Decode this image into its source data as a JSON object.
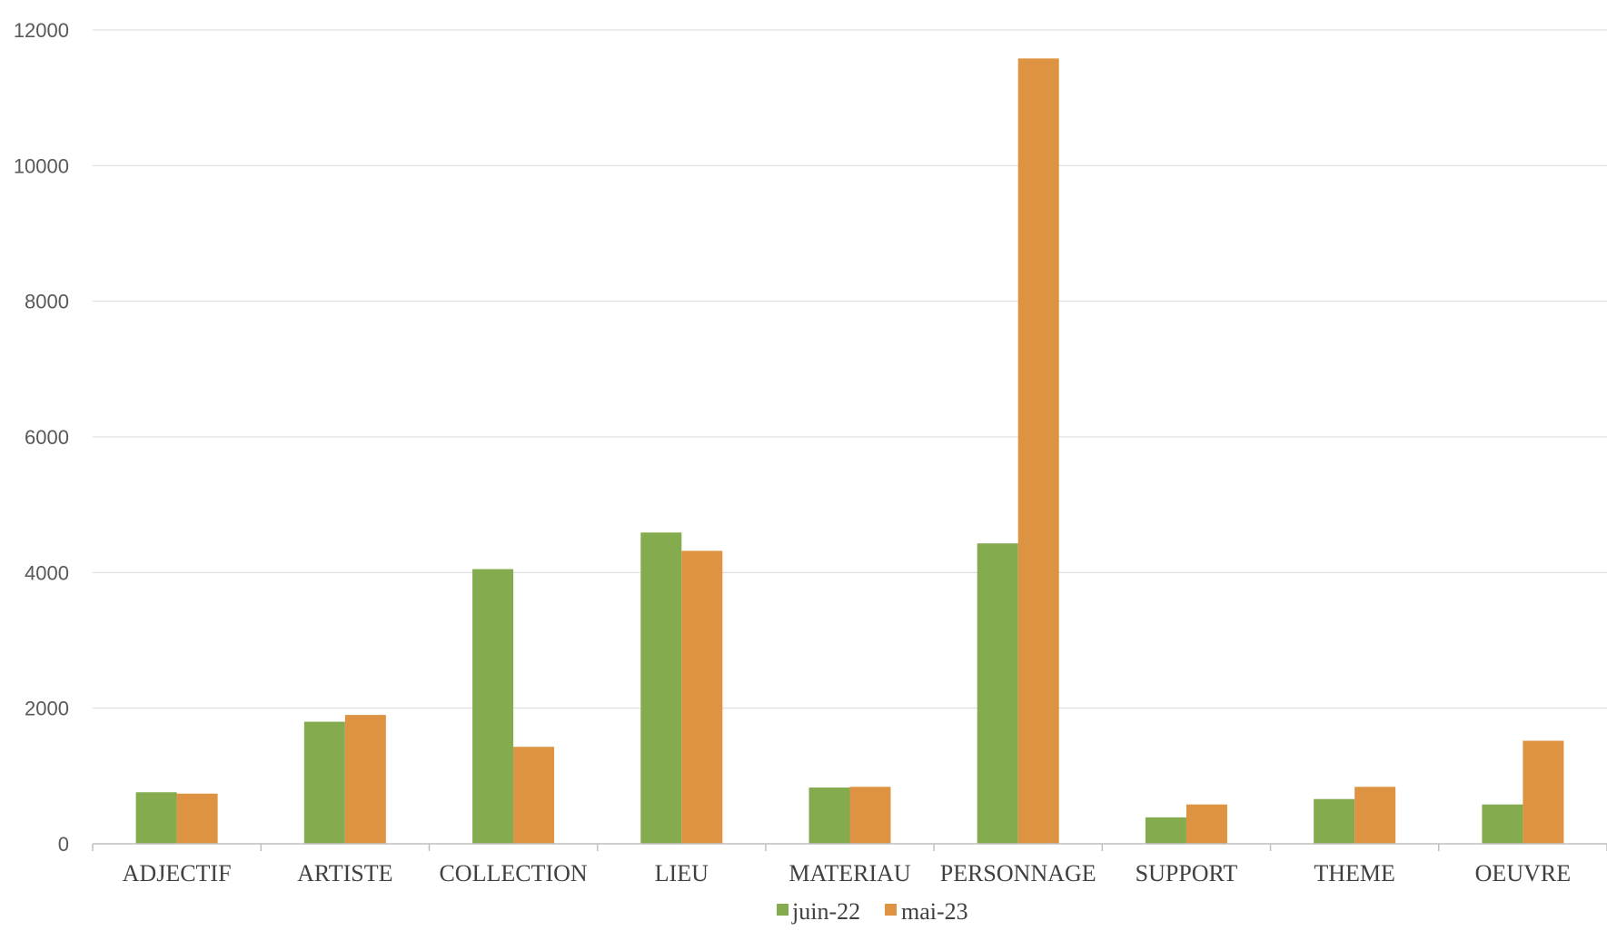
{
  "chart_data": {
    "type": "bar",
    "title": "",
    "xlabel": "",
    "ylabel": "",
    "ylim": [
      0,
      12000
    ],
    "yticks": [
      0,
      2000,
      4000,
      6000,
      8000,
      10000,
      12000
    ],
    "ytick_labels": [
      "0",
      "2000",
      "4000",
      "6000",
      "8000",
      "10000",
      "12000"
    ],
    "grid": true,
    "legend_position": "bottom",
    "categories": [
      "ADJECTIF",
      "ARTISTE",
      "COLLECTION",
      "LIEU",
      "MATERIAU",
      "PERSONNAGE",
      "SUPPORT",
      "THEME",
      "OEUVRE"
    ],
    "series": [
      {
        "name": "juin-22",
        "color": "#84ac4f",
        "values": [
          760,
          1800,
          4050,
          4590,
          830,
          4430,
          390,
          660,
          580
        ]
      },
      {
        "name": "mai-23",
        "color": "#de9342",
        "values": [
          740,
          1900,
          1430,
          4320,
          840,
          11580,
          580,
          840,
          1520
        ]
      }
    ]
  }
}
